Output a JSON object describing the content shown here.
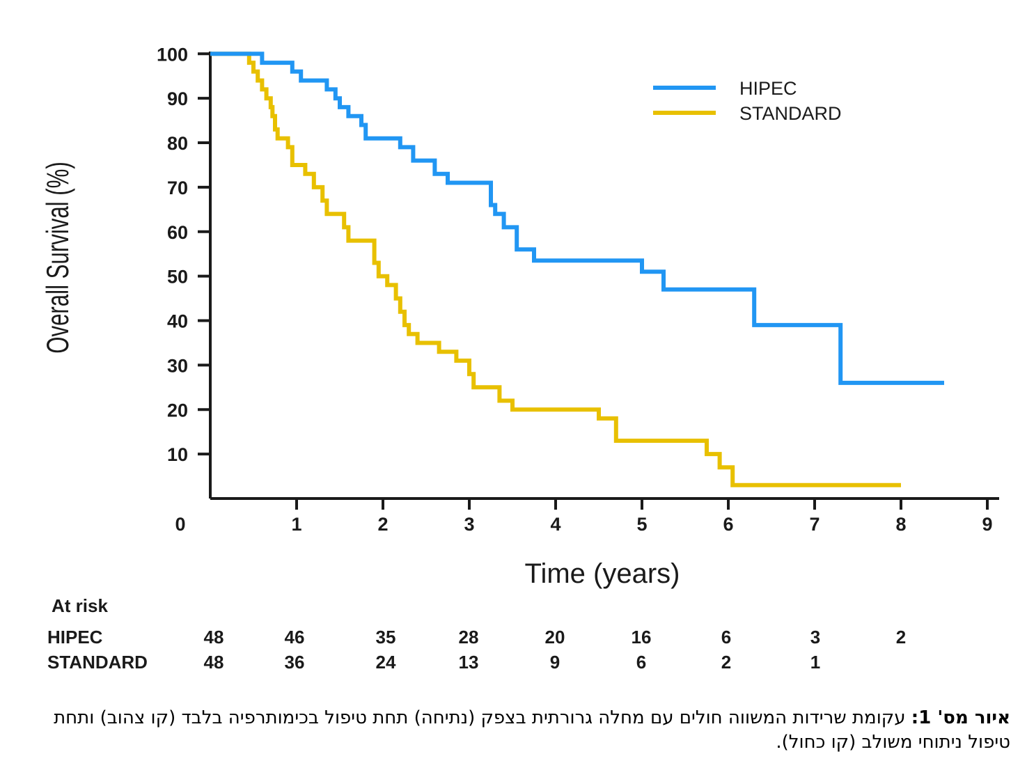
{
  "chart_data": {
    "type": "line",
    "step": true,
    "xlabel": "Time (years)",
    "ylabel": "Overall Survival (%)",
    "xlim": [
      0,
      9
    ],
    "ylim": [
      0,
      100
    ],
    "x_ticks": [
      "0",
      "1",
      "2",
      "3",
      "4",
      "5",
      "6",
      "7",
      "8",
      "9"
    ],
    "y_ticks": [
      "10",
      "20",
      "30",
      "40",
      "50",
      "60",
      "70",
      "80",
      "90",
      "100"
    ],
    "grid": false,
    "legend_position": "top-right",
    "series": [
      {
        "name": "HIPEC",
        "color": "#2196f3",
        "points": [
          [
            0,
            100
          ],
          [
            0.6,
            100
          ],
          [
            0.6,
            98
          ],
          [
            0.95,
            98
          ],
          [
            0.95,
            96
          ],
          [
            1.05,
            96
          ],
          [
            1.05,
            94
          ],
          [
            1.35,
            94
          ],
          [
            1.35,
            92
          ],
          [
            1.45,
            92
          ],
          [
            1.45,
            90
          ],
          [
            1.5,
            90
          ],
          [
            1.5,
            88
          ],
          [
            1.6,
            88
          ],
          [
            1.6,
            86
          ],
          [
            1.75,
            86
          ],
          [
            1.75,
            84
          ],
          [
            1.8,
            84
          ],
          [
            1.8,
            81
          ],
          [
            2.2,
            81
          ],
          [
            2.2,
            79
          ],
          [
            2.35,
            79
          ],
          [
            2.35,
            76
          ],
          [
            2.6,
            76
          ],
          [
            2.6,
            73
          ],
          [
            2.75,
            73
          ],
          [
            2.75,
            71
          ],
          [
            3.25,
            71
          ],
          [
            3.25,
            66
          ],
          [
            3.3,
            66
          ],
          [
            3.3,
            64
          ],
          [
            3.4,
            64
          ],
          [
            3.4,
            61
          ],
          [
            3.55,
            61
          ],
          [
            3.55,
            56
          ],
          [
            3.75,
            56
          ],
          [
            3.75,
            53.5
          ],
          [
            5.0,
            53.5
          ],
          [
            5.0,
            51
          ],
          [
            5.25,
            51
          ],
          [
            5.25,
            47
          ],
          [
            6.3,
            47
          ],
          [
            6.3,
            39
          ],
          [
            7.3,
            39
          ],
          [
            7.3,
            26
          ],
          [
            8.5,
            26
          ]
        ]
      },
      {
        "name": "STANDARD",
        "color": "#e8c000",
        "points": [
          [
            0,
            100
          ],
          [
            0.45,
            100
          ],
          [
            0.45,
            98
          ],
          [
            0.5,
            98
          ],
          [
            0.5,
            96
          ],
          [
            0.55,
            96
          ],
          [
            0.55,
            94
          ],
          [
            0.6,
            94
          ],
          [
            0.6,
            92
          ],
          [
            0.65,
            92
          ],
          [
            0.65,
            90
          ],
          [
            0.7,
            90
          ],
          [
            0.7,
            88
          ],
          [
            0.72,
            88
          ],
          [
            0.72,
            86
          ],
          [
            0.75,
            86
          ],
          [
            0.75,
            83
          ],
          [
            0.78,
            83
          ],
          [
            0.78,
            81
          ],
          [
            0.9,
            81
          ],
          [
            0.9,
            79
          ],
          [
            0.95,
            79
          ],
          [
            0.95,
            75
          ],
          [
            1.1,
            75
          ],
          [
            1.1,
            73
          ],
          [
            1.2,
            73
          ],
          [
            1.2,
            70
          ],
          [
            1.3,
            70
          ],
          [
            1.3,
            67
          ],
          [
            1.35,
            67
          ],
          [
            1.35,
            64
          ],
          [
            1.55,
            64
          ],
          [
            1.55,
            61
          ],
          [
            1.6,
            61
          ],
          [
            1.6,
            58
          ],
          [
            1.9,
            58
          ],
          [
            1.9,
            53
          ],
          [
            1.95,
            53
          ],
          [
            1.95,
            50
          ],
          [
            2.05,
            50
          ],
          [
            2.05,
            48
          ],
          [
            2.15,
            48
          ],
          [
            2.15,
            45
          ],
          [
            2.2,
            45
          ],
          [
            2.2,
            42
          ],
          [
            2.25,
            42
          ],
          [
            2.25,
            39
          ],
          [
            2.3,
            39
          ],
          [
            2.3,
            37
          ],
          [
            2.4,
            37
          ],
          [
            2.4,
            35
          ],
          [
            2.65,
            35
          ],
          [
            2.65,
            33
          ],
          [
            2.85,
            33
          ],
          [
            2.85,
            31
          ],
          [
            3.0,
            31
          ],
          [
            3.0,
            28
          ],
          [
            3.05,
            28
          ],
          [
            3.05,
            25
          ],
          [
            3.35,
            25
          ],
          [
            3.35,
            22
          ],
          [
            3.5,
            22
          ],
          [
            3.5,
            20
          ],
          [
            4.5,
            20
          ],
          [
            4.5,
            18
          ],
          [
            4.7,
            18
          ],
          [
            4.7,
            13
          ],
          [
            5.75,
            13
          ],
          [
            5.75,
            10
          ],
          [
            5.9,
            10
          ],
          [
            5.9,
            7
          ],
          [
            6.05,
            7
          ],
          [
            6.05,
            3
          ],
          [
            8.0,
            3
          ]
        ]
      }
    ],
    "at_risk": {
      "title": "At risk",
      "times": [
        0,
        1,
        2,
        3,
        4,
        5,
        6,
        7,
        8
      ],
      "rows": [
        {
          "label": "HIPEC",
          "values": [
            "48",
            "46",
            "35",
            "28",
            "20",
            "16",
            "6",
            "3",
            "2"
          ]
        },
        {
          "label": "STANDARD",
          "values": [
            "48",
            "36",
            "24",
            "13",
            "9",
            "6",
            "2",
            "1",
            ""
          ]
        }
      ]
    }
  },
  "caption": {
    "label": "איור מס' 1:",
    "text": " עקומת שרידות המשווה חולים עם מחלה גרורתית בצפק (נתיחה) תחת טיפול בכימותרפיה בלבד (קו צהוב) ותחת טיפול ניתוחי משולב (קו כחול)."
  }
}
